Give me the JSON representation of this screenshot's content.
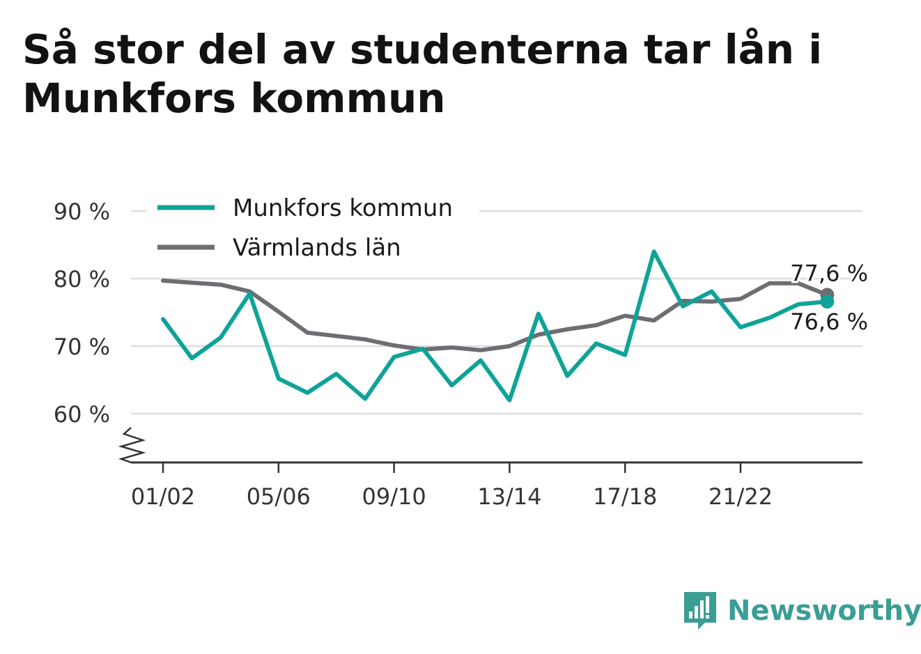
{
  "title": "Så stor del av studenterna tar lån i Munkfors kommun",
  "brand": {
    "name": "Newsworthy",
    "icon": "newsworthy-logo-icon"
  },
  "colors": {
    "munkfors": "#0fa398",
    "varmland": "#6e6d72",
    "grid": "#dddddd",
    "axis": "#333333",
    "text": "#333333",
    "brand": "#3a9e95"
  },
  "chart_data": {
    "type": "line",
    "x": [
      "01/02",
      "02/03",
      "03/04",
      "04/05",
      "05/06",
      "06/07",
      "07/08",
      "08/09",
      "09/10",
      "10/11",
      "11/12",
      "12/13",
      "13/14",
      "14/15",
      "15/16",
      "16/17",
      "17/18",
      "18/19",
      "19/20",
      "20/21",
      "21/22",
      "22/23",
      "23/24",
      "24/25"
    ],
    "xticks": [
      "01/02",
      "05/06",
      "09/10",
      "13/14",
      "17/18",
      "21/22"
    ],
    "yticks": [
      60,
      70,
      80,
      90
    ],
    "ytick_labels": [
      "60 %",
      "70 %",
      "80 %",
      "90 %"
    ],
    "ylim": [
      53,
      90
    ],
    "axis_break": true,
    "grid": true,
    "legend_position": "top-left",
    "series": [
      {
        "name": "Munkfors kommun",
        "values": [
          74.0,
          68.2,
          71.3,
          77.8,
          65.2,
          63.1,
          65.9,
          62.2,
          68.4,
          69.6,
          64.2,
          67.9,
          62.0,
          74.8,
          65.6,
          70.4,
          68.7,
          84.0,
          75.9,
          78.1,
          72.8,
          74.2,
          76.2,
          76.6
        ],
        "end_label": "76,6 %"
      },
      {
        "name": "Värmlands län",
        "values": [
          79.7,
          79.4,
          79.1,
          78.1,
          75.1,
          72.0,
          71.5,
          71.0,
          70.1,
          69.5,
          69.8,
          69.4,
          70.0,
          71.7,
          72.5,
          73.1,
          74.5,
          73.8,
          76.7,
          76.6,
          77.0,
          79.3,
          79.3,
          77.6
        ],
        "end_label": "77,6 %"
      }
    ]
  }
}
